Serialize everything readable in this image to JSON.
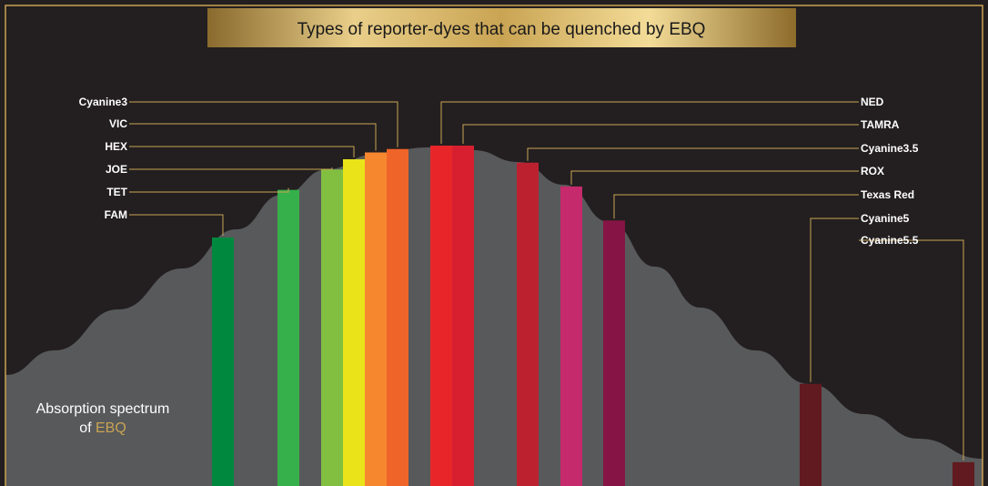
{
  "chart_data": {
    "type": "bar",
    "title": "Types of reporter-dyes that can be quenched by EBQ",
    "spectrum_label": {
      "line1": "Absorption spectrum",
      "line2_prefix": "of ",
      "line2_highlight": "EBQ"
    },
    "ylim": [
      0,
      1
    ],
    "dyes": [
      {
        "name": "FAM",
        "value": 0.73,
        "color": "#00893e",
        "label_side": "left"
      },
      {
        "name": "TET",
        "value": 0.87,
        "color": "#36b04a",
        "label_side": "left"
      },
      {
        "name": "JOE",
        "value": 0.93,
        "color": "#82bf41",
        "label_side": "left"
      },
      {
        "name": "HEX",
        "value": 0.96,
        "color": "#eae31a",
        "label_side": "left"
      },
      {
        "name": "VIC",
        "value": 0.98,
        "color": "#f6872f",
        "label_side": "left"
      },
      {
        "name": "Cyanine3",
        "value": 0.99,
        "color": "#ef6428",
        "label_side": "left"
      },
      {
        "name": "NED",
        "value": 1.0,
        "color": "#e8262a",
        "label_side": "right"
      },
      {
        "name": "TAMRA",
        "value": 1.0,
        "color": "#d71f30",
        "label_side": "right"
      },
      {
        "name": "Cyanine3.5",
        "value": 0.95,
        "color": "#bc2130",
        "label_side": "right"
      },
      {
        "name": "ROX",
        "value": 0.88,
        "color": "#c52a6c",
        "label_side": "right"
      },
      {
        "name": "Texas Red",
        "value": 0.78,
        "color": "#861545",
        "label_side": "right"
      },
      {
        "name": "Cyanine5",
        "value": 0.3,
        "color": "#611a1f",
        "label_side": "right"
      },
      {
        "name": "Cyanine5.5",
        "value": 0.07,
        "color": "#611a1f",
        "label_side": "right"
      }
    ],
    "colors": {
      "background": "#231f20",
      "spectrum_fill": "#58595b",
      "gold": "#c9a453",
      "label_text": "#ffffff"
    }
  }
}
